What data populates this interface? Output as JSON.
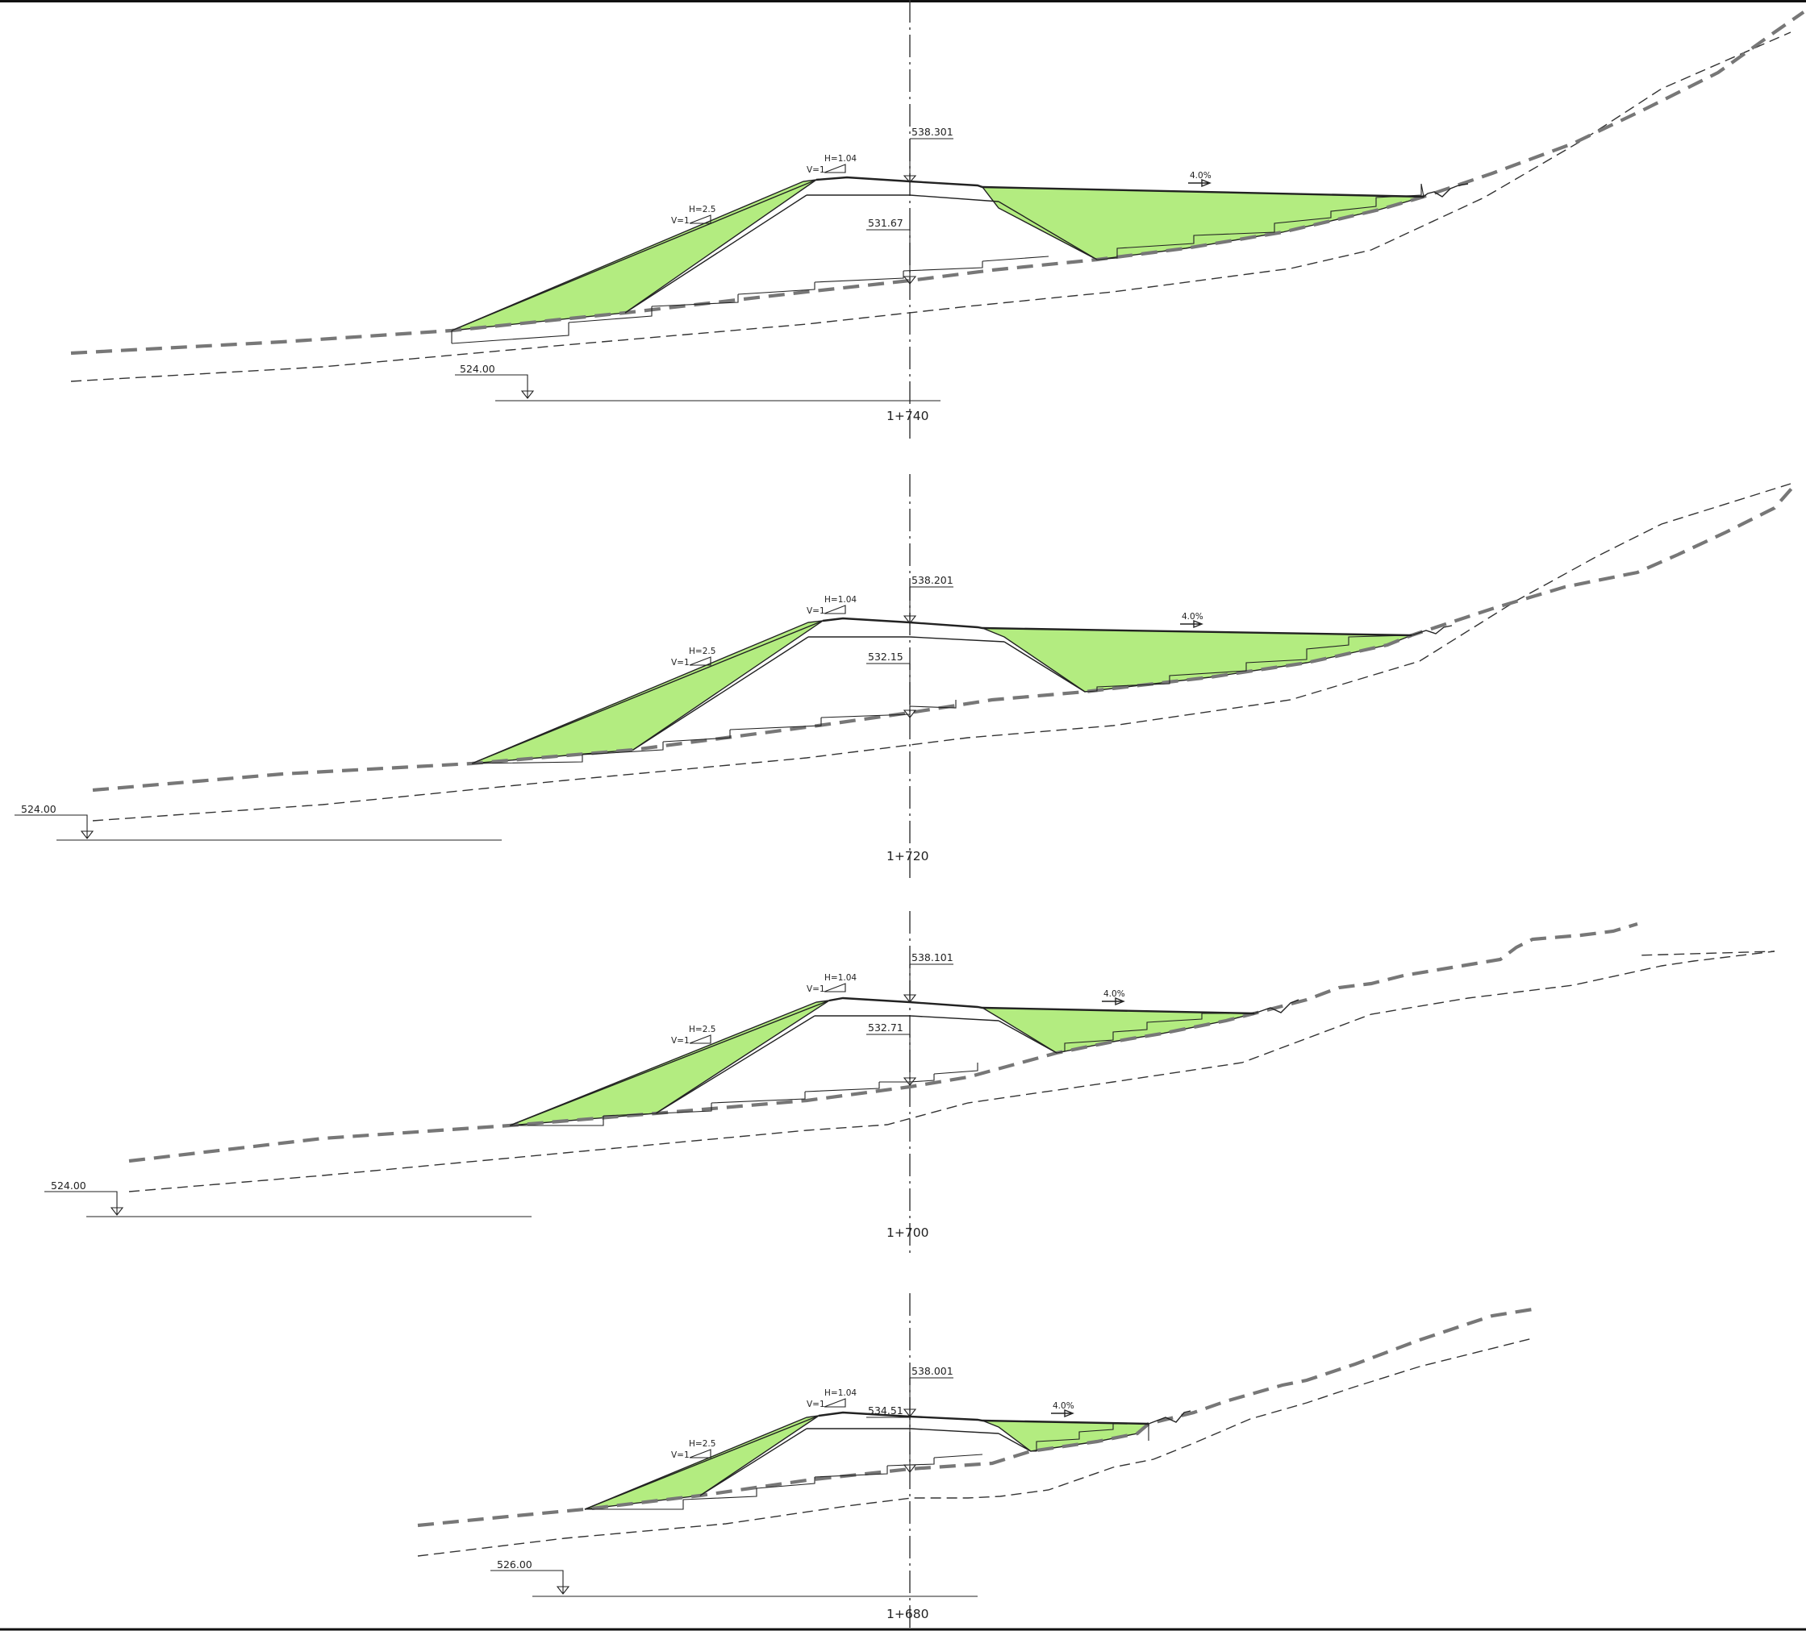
{
  "sections": [
    {
      "station": "1+740",
      "top_elevation": "538.301",
      "bottom_elevation": "531.67",
      "datum_elevation": "524.00",
      "crest_slope": {
        "h": "H=1.04",
        "v": "V=1"
      },
      "fill_slope": {
        "h": "H=2.5",
        "v": "V=1"
      },
      "crossfall": "4.0%"
    },
    {
      "station": "1+720",
      "top_elevation": "538.201",
      "bottom_elevation": "532.15",
      "datum_elevation": "524.00",
      "crest_slope": {
        "h": "H=1.04",
        "v": "V=1"
      },
      "fill_slope": {
        "h": "H=2.5",
        "v": "V=1"
      },
      "crossfall": "4.0%"
    },
    {
      "station": "1+700",
      "top_elevation": "538.101",
      "bottom_elevation": "532.71",
      "datum_elevation": "524.00",
      "crest_slope": {
        "h": "H=1.04",
        "v": "V=1"
      },
      "fill_slope": {
        "h": "H=2.5",
        "v": "V=1"
      },
      "crossfall": "4.0%"
    },
    {
      "station": "1+680",
      "top_elevation": "538.001",
      "bottom_elevation": "534.51",
      "datum_elevation": "526.00",
      "crest_slope": {
        "h": "H=1.04",
        "v": "V=1"
      },
      "fill_slope": {
        "h": "H=2.5",
        "v": "V=1"
      },
      "crossfall": "4.0%"
    }
  ],
  "colors": {
    "fill_area": "#b3ec80",
    "existing_ground": "#777777",
    "linework": "#222222"
  }
}
